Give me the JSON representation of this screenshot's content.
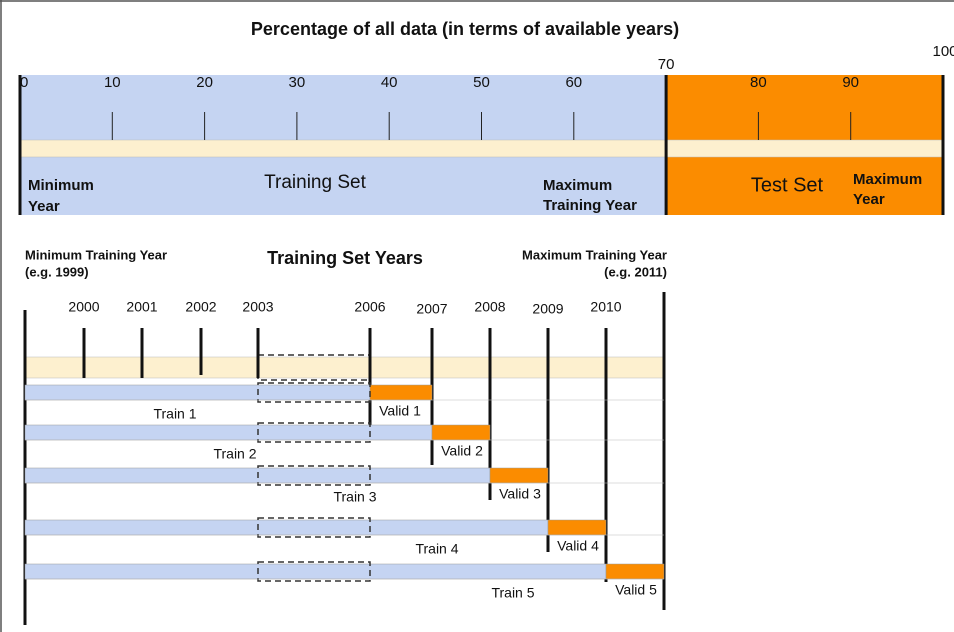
{
  "title": "Percentage of all data (in terms of available years)",
  "percent_axis": {
    "ticks": [
      0,
      10,
      20,
      30,
      40,
      50,
      60,
      70,
      80,
      90,
      100
    ]
  },
  "top_panel": {
    "minimum_year": [
      "Minimum",
      "Year"
    ],
    "training_set": "Training Set",
    "maximum_training_year": [
      "Maximum",
      "Training Year"
    ],
    "test_set": "Test Set",
    "maximum_year": [
      "Maximum",
      "Year"
    ]
  },
  "bottom_panel": {
    "minimum_training_year": [
      "Minimum Training Year",
      "(e.g. 1999)"
    ],
    "title": "Training Set Years",
    "maximum_training_year": [
      "Maximum Training Year",
      "(e.g. 2011)"
    ],
    "years": [
      "2000",
      "2001",
      "2002",
      "2003",
      "2006",
      "2007",
      "2008",
      "2009",
      "2010"
    ],
    "folds": [
      {
        "train": "Train 1",
        "valid": "Valid 1"
      },
      {
        "train": "Train 2",
        "valid": "Valid 2"
      },
      {
        "train": "Train 3",
        "valid": "Valid 3"
      },
      {
        "train": "Train 4",
        "valid": "Valid 4"
      },
      {
        "train": "Train 5",
        "valid": "Valid 5"
      }
    ]
  }
}
